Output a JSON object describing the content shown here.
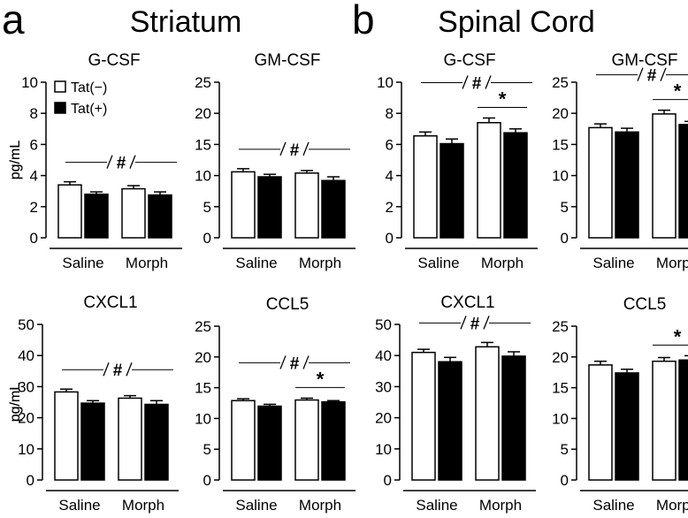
{
  "panels": [
    {
      "letter": "a",
      "title": "Striatum"
    },
    {
      "letter": "b",
      "title": "Spinal Cord"
    }
  ],
  "legend": {
    "items": [
      {
        "label": "Tat(−)",
        "fill": "#ffffff"
      },
      {
        "label": "Tat(+)",
        "fill": "#000000"
      }
    ]
  },
  "ylabel": "pg/mL",
  "categories": [
    "Saline",
    "Morph"
  ],
  "colors": {
    "bar_open": "#ffffff",
    "bar_filled": "#000000",
    "stroke": "#000000"
  },
  "chart_data": [
    {
      "type": "bar",
      "panel": "a",
      "title": "G-CSF",
      "ylabel": "pg/mL",
      "ylim": [
        0,
        10
      ],
      "yticks": [
        0,
        2,
        4,
        6,
        8,
        10
      ],
      "categories": [
        "Saline",
        "Morph"
      ],
      "series": [
        {
          "name": "Tat(−)",
          "values": [
            3.4,
            3.15
          ],
          "errors": [
            0.2,
            0.2
          ]
        },
        {
          "name": "Tat(+)",
          "values": [
            2.8,
            2.75
          ],
          "errors": [
            0.15,
            0.2
          ]
        }
      ],
      "annotations": [
        {
          "text": "#",
          "span": "all"
        }
      ]
    },
    {
      "type": "bar",
      "panel": "a",
      "title": "GM-CSF",
      "ylabel": "",
      "ylim": [
        0,
        25
      ],
      "yticks": [
        0,
        5,
        10,
        15,
        20,
        25
      ],
      "categories": [
        "Saline",
        "Morph"
      ],
      "series": [
        {
          "name": "Tat(−)",
          "values": [
            10.6,
            10.4
          ],
          "errors": [
            0.5,
            0.4
          ]
        },
        {
          "name": "Tat(+)",
          "values": [
            9.8,
            9.2
          ],
          "errors": [
            0.4,
            0.6
          ]
        }
      ],
      "annotations": [
        {
          "text": "#",
          "span": "all"
        }
      ]
    },
    {
      "type": "bar",
      "panel": "a",
      "title": "CXCL1",
      "ylabel": "pg/mL",
      "ylim": [
        0,
        50
      ],
      "yticks": [
        0,
        10,
        20,
        30,
        40,
        50
      ],
      "categories": [
        "Saline",
        "Morph"
      ],
      "series": [
        {
          "name": "Tat(−)",
          "values": [
            28.3,
            26.3
          ],
          "errors": [
            0.9,
            0.8
          ]
        },
        {
          "name": "Tat(+)",
          "values": [
            24.7,
            24.3
          ],
          "errors": [
            0.8,
            1.2
          ]
        }
      ],
      "annotations": [
        {
          "text": "#",
          "span": "all"
        }
      ]
    },
    {
      "type": "bar",
      "panel": "a",
      "title": "CCL5",
      "ylabel": "",
      "ylim": [
        0,
        25
      ],
      "yticks": [
        0,
        5,
        10,
        15,
        20,
        25
      ],
      "categories": [
        "Saline",
        "Morph"
      ],
      "series": [
        {
          "name": "Tat(−)",
          "values": [
            12.9,
            13.0
          ],
          "errors": [
            0.3,
            0.3
          ]
        },
        {
          "name": "Tat(+)",
          "values": [
            12.0,
            12.7
          ],
          "errors": [
            0.3,
            0.2
          ]
        }
      ],
      "annotations": [
        {
          "text": "#",
          "span": "all"
        },
        {
          "text": "*",
          "span": "morph"
        }
      ]
    },
    {
      "type": "bar",
      "panel": "b",
      "title": "G-CSF",
      "ylabel": "pg/mL",
      "ylim": [
        0,
        10
      ],
      "yticks": [
        0,
        2,
        4,
        6,
        8,
        10
      ],
      "categories": [
        "Saline",
        "Morph"
      ],
      "series": [
        {
          "name": "Tat(−)",
          "values": [
            6.55,
            7.4
          ],
          "errors": [
            0.25,
            0.3
          ]
        },
        {
          "name": "Tat(+)",
          "values": [
            6.05,
            6.75
          ],
          "errors": [
            0.3,
            0.25
          ]
        }
      ],
      "annotations": [
        {
          "text": "#",
          "span": "all"
        },
        {
          "text": "*",
          "span": "morph"
        }
      ]
    },
    {
      "type": "bar",
      "panel": "b",
      "title": "GM-CSF",
      "ylabel": "",
      "ylim": [
        0,
        25
      ],
      "yticks": [
        0,
        5,
        10,
        15,
        20,
        25
      ],
      "categories": [
        "Saline",
        "Morph"
      ],
      "series": [
        {
          "name": "Tat(−)",
          "values": [
            17.7,
            19.9
          ],
          "errors": [
            0.6,
            0.6
          ]
        },
        {
          "name": "Tat(+)",
          "values": [
            17.0,
            18.2
          ],
          "errors": [
            0.6,
            0.5
          ]
        }
      ],
      "annotations": [
        {
          "text": "#",
          "span": "all"
        },
        {
          "text": "*",
          "span": "morph"
        }
      ]
    },
    {
      "type": "bar",
      "panel": "b",
      "title": "CXCL1",
      "ylabel": "pg/mL",
      "ylim": [
        0,
        50
      ],
      "yticks": [
        0,
        10,
        20,
        30,
        40,
        50
      ],
      "categories": [
        "Saline",
        "Morph"
      ],
      "series": [
        {
          "name": "Tat(−)",
          "values": [
            41.0,
            42.8
          ],
          "errors": [
            1.0,
            1.4
          ]
        },
        {
          "name": "Tat(+)",
          "values": [
            38.0,
            39.8
          ],
          "errors": [
            1.4,
            1.4
          ]
        }
      ],
      "annotations": [
        {
          "text": "#",
          "span": "all"
        }
      ]
    },
    {
      "type": "bar",
      "panel": "b",
      "title": "CCL5",
      "ylabel": "",
      "ylim": [
        0,
        25
      ],
      "yticks": [
        0,
        5,
        10,
        15,
        20,
        25
      ],
      "categories": [
        "Saline",
        "Morph"
      ],
      "series": [
        {
          "name": "Tat(−)",
          "values": [
            18.7,
            19.3
          ],
          "errors": [
            0.6,
            0.6
          ]
        },
        {
          "name": "Tat(+)",
          "values": [
            17.4,
            19.5
          ],
          "errors": [
            0.6,
            0.7
          ]
        }
      ],
      "annotations": [
        {
          "text": "*",
          "span": "morph"
        }
      ]
    }
  ]
}
